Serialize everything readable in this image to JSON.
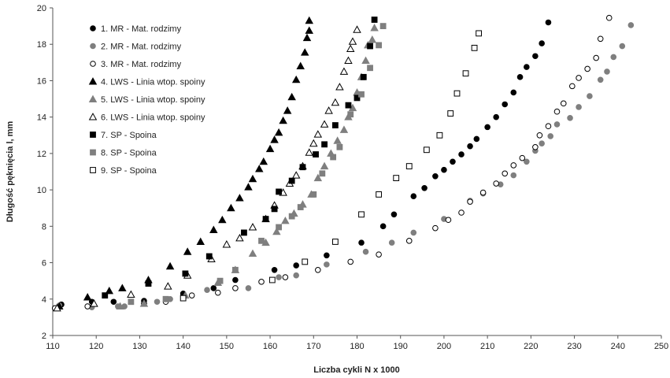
{
  "chart_data": {
    "type": "scatter",
    "xlabel": "Liczba cykli N x 1000",
    "ylabel": "Długość pęknięcia l, mm",
    "xlim": [
      110,
      250
    ],
    "ylim": [
      2,
      20
    ],
    "xticks": [
      110,
      120,
      130,
      140,
      150,
      160,
      170,
      180,
      190,
      200,
      210,
      220,
      230,
      240,
      250
    ],
    "yticks": [
      2,
      4,
      6,
      8,
      10,
      12,
      14,
      16,
      18,
      20
    ],
    "grid": false,
    "legend_position": "top-left",
    "series": [
      {
        "name": "1. MR - Mat. rodzimy",
        "marker": "circle",
        "fill": "#000000",
        "points": [
          [
            112,
            3.7
          ],
          [
            119,
            3.85
          ],
          [
            124,
            3.85
          ],
          [
            131,
            3.9
          ],
          [
            140,
            4.3
          ],
          [
            147,
            4.6
          ],
          [
            152,
            5.05
          ],
          [
            161,
            5.6
          ],
          [
            166,
            5.85
          ],
          [
            173,
            6.4
          ],
          [
            181,
            7.1
          ],
          [
            186,
            8.0
          ],
          [
            188.5,
            8.65
          ],
          [
            193,
            9.65
          ],
          [
            195.5,
            10.1
          ],
          [
            198,
            10.75
          ],
          [
            200,
            11.1
          ],
          [
            202,
            11.55
          ],
          [
            204,
            11.95
          ],
          [
            206,
            12.4
          ],
          [
            207.5,
            12.8
          ],
          [
            210,
            13.45
          ],
          [
            212,
            14.0
          ],
          [
            214,
            14.7
          ],
          [
            216,
            15.35
          ],
          [
            217.5,
            16.2
          ],
          [
            219,
            16.75
          ],
          [
            221,
            17.35
          ],
          [
            222.5,
            18.05
          ],
          [
            224,
            19.2
          ]
        ]
      },
      {
        "name": "2. MR - Mat. rodzimy",
        "marker": "circle",
        "fill": "#7f7f7f",
        "points": [
          [
            111.5,
            3.65
          ],
          [
            119,
            3.55
          ],
          [
            125,
            3.6
          ],
          [
            126.5,
            3.6
          ],
          [
            131,
            3.75
          ],
          [
            134,
            3.85
          ],
          [
            137,
            4.0
          ],
          [
            145.5,
            4.5
          ],
          [
            155,
            4.6
          ],
          [
            162,
            5.2
          ],
          [
            166,
            5.3
          ],
          [
            173,
            5.9
          ],
          [
            182,
            6.6
          ],
          [
            188,
            7.1
          ],
          [
            193,
            7.65
          ],
          [
            200,
            8.4
          ],
          [
            206,
            9.4
          ],
          [
            209,
            9.8
          ],
          [
            213,
            10.3
          ],
          [
            216,
            10.8
          ],
          [
            219,
            11.55
          ],
          [
            221,
            12.15
          ],
          [
            222.5,
            12.55
          ],
          [
            224.5,
            12.95
          ],
          [
            226,
            13.6
          ],
          [
            229,
            13.95
          ],
          [
            231,
            14.55
          ],
          [
            233.5,
            15.15
          ],
          [
            236,
            16.05
          ],
          [
            237.5,
            16.5
          ],
          [
            239,
            17.3
          ],
          [
            241,
            17.9
          ],
          [
            243,
            19.05
          ]
        ]
      },
      {
        "name": "3. MR - Mat. rodzimy",
        "marker": "circle",
        "fill": "#ffffff",
        "points": [
          [
            110.5,
            3.5
          ],
          [
            118,
            3.6
          ],
          [
            131,
            3.75
          ],
          [
            136,
            3.85
          ],
          [
            142,
            4.2
          ],
          [
            148,
            4.35
          ],
          [
            152,
            4.6
          ],
          [
            158,
            4.95
          ],
          [
            163.5,
            5.2
          ],
          [
            171,
            5.6
          ],
          [
            178.5,
            6.05
          ],
          [
            185,
            6.45
          ],
          [
            192,
            7.2
          ],
          [
            198,
            7.9
          ],
          [
            201,
            8.35
          ],
          [
            204,
            8.75
          ],
          [
            206,
            9.35
          ],
          [
            209,
            9.85
          ],
          [
            212,
            10.35
          ],
          [
            214,
            10.9
          ],
          [
            216,
            11.35
          ],
          [
            218,
            11.75
          ],
          [
            221,
            12.35
          ],
          [
            222,
            13.0
          ],
          [
            224,
            13.5
          ],
          [
            226,
            14.3
          ],
          [
            227.5,
            14.75
          ],
          [
            229.5,
            15.7
          ],
          [
            231,
            16.15
          ],
          [
            233,
            16.65
          ],
          [
            235,
            17.25
          ],
          [
            236,
            18.3
          ],
          [
            238,
            19.45
          ]
        ]
      },
      {
        "name": "4. LWS - Linia wtop. spoiny",
        "marker": "triangle",
        "fill": "#000000",
        "points": [
          [
            111.5,
            3.6
          ],
          [
            118,
            4.1
          ],
          [
            123,
            4.45
          ],
          [
            126,
            4.6
          ],
          [
            132,
            5.05
          ],
          [
            137,
            5.8
          ],
          [
            141,
            6.6
          ],
          [
            144,
            7.15
          ],
          [
            147,
            7.8
          ],
          [
            149,
            8.35
          ],
          [
            151,
            9.0
          ],
          [
            153,
            9.55
          ],
          [
            155,
            10.15
          ],
          [
            156,
            10.6
          ],
          [
            157.5,
            11.15
          ],
          [
            158.5,
            11.55
          ],
          [
            160,
            12.25
          ],
          [
            161,
            12.75
          ],
          [
            162,
            13.15
          ],
          [
            163,
            13.8
          ],
          [
            164,
            14.35
          ],
          [
            165,
            15.1
          ],
          [
            166,
            16.05
          ],
          [
            167,
            16.8
          ],
          [
            168,
            17.55
          ],
          [
            168.5,
            18.35
          ],
          [
            169,
            18.75
          ],
          [
            169,
            19.3
          ]
        ]
      },
      {
        "name": "5. LWS - Linia wtop. spoiny",
        "marker": "triangle",
        "fill": "#7f7f7f",
        "points": [
          [
            125.5,
            3.6
          ],
          [
            131,
            3.75
          ],
          [
            140.5,
            4.2
          ],
          [
            148,
            4.9
          ],
          [
            152,
            5.6
          ],
          [
            156,
            6.5
          ],
          [
            159,
            7.1
          ],
          [
            161.5,
            7.7
          ],
          [
            163.5,
            8.3
          ],
          [
            165.5,
            8.7
          ],
          [
            167.5,
            9.2
          ],
          [
            169.5,
            9.75
          ],
          [
            171,
            10.65
          ],
          [
            172.5,
            11.3
          ],
          [
            174,
            12.0
          ],
          [
            175.5,
            12.7
          ],
          [
            177,
            13.3
          ],
          [
            178,
            14.0
          ],
          [
            179,
            14.5
          ],
          [
            180,
            15.35
          ],
          [
            181,
            16.2
          ],
          [
            182,
            17.1
          ],
          [
            182.5,
            17.95
          ],
          [
            183.5,
            18.25
          ],
          [
            184,
            18.9
          ]
        ]
      },
      {
        "name": "6. LWS - Linia wtop. spoiny",
        "marker": "triangle",
        "fill": "#ffffff",
        "points": [
          [
            111,
            3.5
          ],
          [
            119.5,
            3.75
          ],
          [
            128,
            4.25
          ],
          [
            136.5,
            4.7
          ],
          [
            141,
            5.3
          ],
          [
            146.5,
            6.2
          ],
          [
            150,
            7.0
          ],
          [
            153,
            7.35
          ],
          [
            156,
            7.95
          ],
          [
            159,
            8.4
          ],
          [
            161,
            9.15
          ],
          [
            163,
            9.85
          ],
          [
            164.5,
            10.35
          ],
          [
            166,
            10.8
          ],
          [
            167.5,
            11.3
          ],
          [
            169,
            12.05
          ],
          [
            170,
            12.55
          ],
          [
            171,
            13.05
          ],
          [
            172.5,
            13.6
          ],
          [
            173.5,
            14.35
          ],
          [
            175,
            14.8
          ],
          [
            176,
            15.65
          ],
          [
            177,
            16.5
          ],
          [
            178,
            17.1
          ],
          [
            178.5,
            17.75
          ],
          [
            179,
            18.15
          ],
          [
            180,
            18.8
          ]
        ]
      },
      {
        "name": "7. SP - Spoina",
        "marker": "square",
        "fill": "#000000",
        "points": [
          [
            122,
            4.2
          ],
          [
            132,
            4.85
          ],
          [
            140.5,
            5.4
          ],
          [
            146,
            6.35
          ],
          [
            154,
            7.65
          ],
          [
            159,
            8.4
          ],
          [
            161,
            8.95
          ],
          [
            162,
            9.9
          ],
          [
            165,
            10.5
          ],
          [
            167.5,
            11.25
          ],
          [
            170.5,
            11.95
          ],
          [
            172.5,
            12.5
          ],
          [
            175,
            13.55
          ],
          [
            178,
            14.65
          ],
          [
            180,
            15.05
          ],
          [
            181.5,
            16.2
          ],
          [
            183,
            17.9
          ],
          [
            184,
            19.35
          ]
        ]
      },
      {
        "name": "8. SP - Spoina",
        "marker": "square",
        "fill": "#7f7f7f",
        "points": [
          [
            128,
            3.85
          ],
          [
            136,
            4.0
          ],
          [
            148.5,
            5.0
          ],
          [
            152,
            5.6
          ],
          [
            158,
            7.2
          ],
          [
            162,
            7.95
          ],
          [
            165,
            8.55
          ],
          [
            167,
            9.05
          ],
          [
            170,
            9.75
          ],
          [
            172,
            10.9
          ],
          [
            174.5,
            11.8
          ],
          [
            176,
            12.35
          ],
          [
            178.5,
            14.15
          ],
          [
            181,
            15.25
          ],
          [
            183,
            16.7
          ],
          [
            185,
            17.95
          ],
          [
            186,
            19.0
          ]
        ]
      },
      {
        "name": "9. SP - Spoina",
        "marker": "square",
        "fill": "#ffffff",
        "points": [
          [
            140,
            4.05
          ],
          [
            160.5,
            5.05
          ],
          [
            168,
            6.05
          ],
          [
            175,
            7.15
          ],
          [
            181,
            8.65
          ],
          [
            185,
            9.75
          ],
          [
            189,
            10.65
          ],
          [
            192,
            11.3
          ],
          [
            196,
            12.2
          ],
          [
            199,
            13.0
          ],
          [
            201.5,
            14.2
          ],
          [
            203,
            15.3
          ],
          [
            205,
            16.4
          ],
          [
            207,
            17.8
          ],
          [
            208,
            18.6
          ]
        ]
      }
    ]
  }
}
